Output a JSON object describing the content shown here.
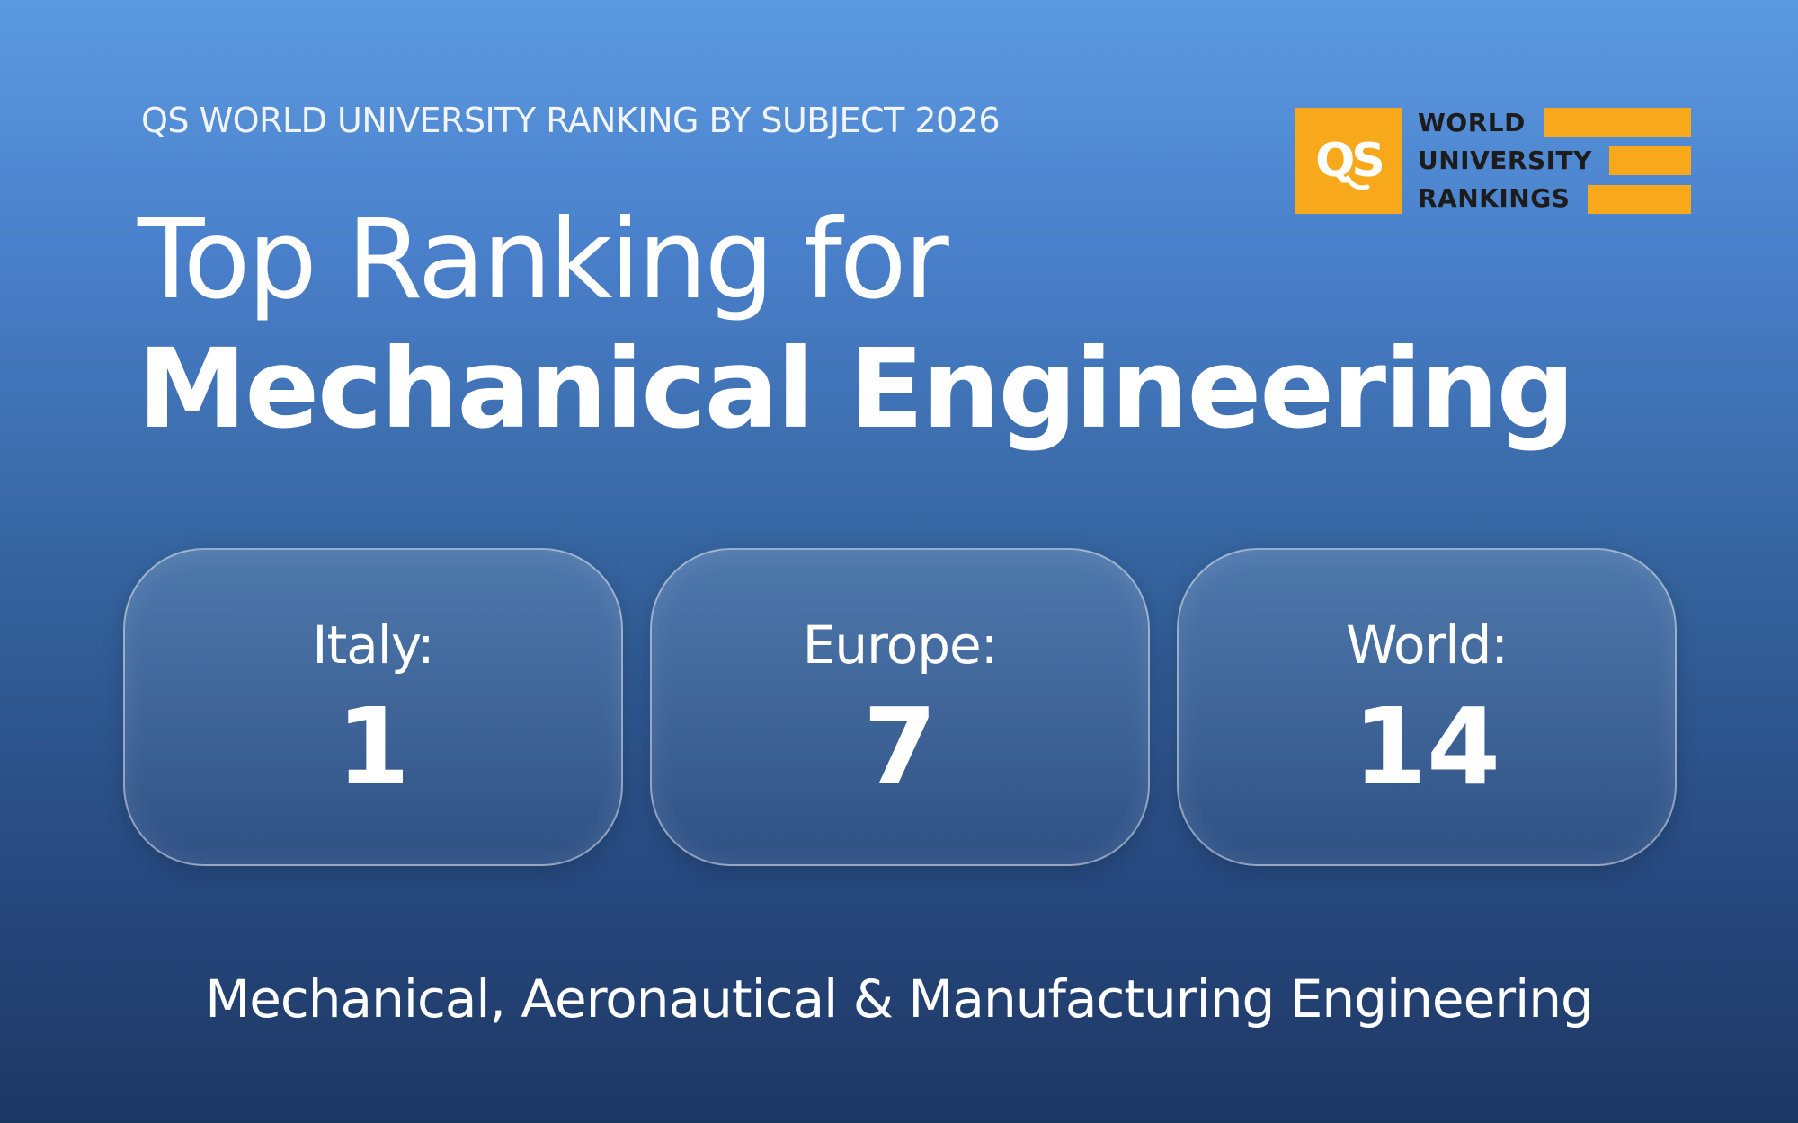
{
  "header": {
    "eyebrow": "QS WORLD UNIVERSITY RANKING BY SUBJECT 2026",
    "title_line1": "Top Ranking for",
    "title_line2": "Mechanical Engineering"
  },
  "logo": {
    "mark": "QS",
    "line1": "WORLD",
    "line2": "UNIVERSITY",
    "line3": "RANKINGS",
    "color": "#f7a81b"
  },
  "rankings": [
    {
      "label": "Italy:",
      "value": "1"
    },
    {
      "label": "Europe:",
      "value": "7"
    },
    {
      "label": "World:",
      "value": "14"
    }
  ],
  "footer": {
    "subject": "Mechanical, Aeronautical & Manufacturing Engineering"
  },
  "colors": {
    "background_top": "#5b9ae0",
    "background_bottom": "#1d3763",
    "text": "#ffffff"
  }
}
